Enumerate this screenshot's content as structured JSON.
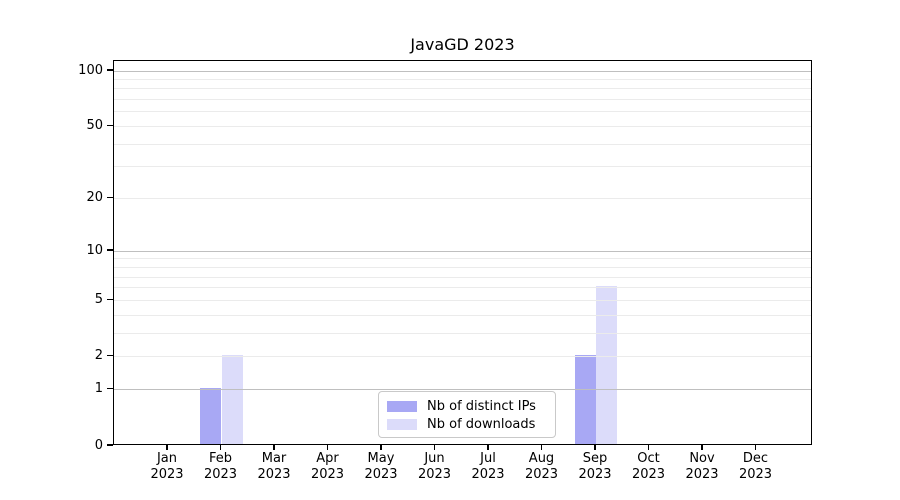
{
  "figure": {
    "title": "JavaGD 2023"
  },
  "colors": {
    "ips_bar": "#a8a8f4",
    "downloads_bar": "#dcdcfa",
    "major_grid": "#bfbfbf",
    "minor_grid": "#ebebeb",
    "axis": "#000000",
    "legend_border": "#c9c9c9"
  },
  "chart_data": {
    "type": "bar",
    "title": "JavaGD 2023",
    "categories": [
      "Jan",
      "Feb",
      "Mar",
      "Apr",
      "May",
      "Jun",
      "Jul",
      "Aug",
      "Sep",
      "Oct",
      "Nov",
      "Dec"
    ],
    "category_year": "2023",
    "series": [
      {
        "name": "Nb of distinct IPs",
        "color_key": "ips_bar",
        "values": [
          0,
          1,
          0,
          0,
          0,
          0,
          0,
          0,
          2,
          0,
          0,
          0
        ]
      },
      {
        "name": "Nb of downloads",
        "color_key": "downloads_bar",
        "values": [
          0,
          2,
          0,
          0,
          0,
          0,
          0,
          0,
          6,
          0,
          0,
          0
        ]
      }
    ],
    "yscale": "log1p",
    "ylim": [
      0,
      114
    ],
    "yticks": [
      0,
      1,
      2,
      5,
      10,
      20,
      50,
      100
    ],
    "ytick_labels": [
      "0",
      "1",
      "2",
      "5",
      "10",
      "20",
      "50",
      "100"
    ],
    "major_gridlines": [
      1,
      10,
      100
    ],
    "minor_gridlines": [
      2,
      3,
      4,
      5,
      6,
      7,
      8,
      9,
      20,
      30,
      40,
      50,
      60,
      70,
      80,
      90
    ],
    "grid": true,
    "grid_above_bars": true,
    "legend_position": "lower center"
  },
  "legend": {
    "items": [
      {
        "label": "Nb of distinct IPs",
        "color_key": "ips_bar"
      },
      {
        "label": "Nb of downloads",
        "color_key": "downloads_bar"
      }
    ]
  }
}
